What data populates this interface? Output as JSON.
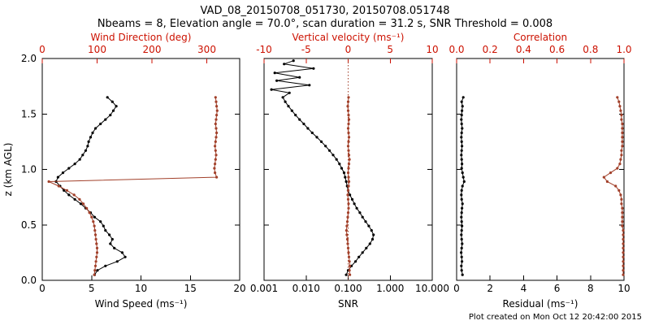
{
  "title": "VAD_08_20150708_051730, 20150708.051748",
  "subtitle": "Nbeams = 8, Elevation angle = 70.0°, scan duration = 31.2 s, SNR Threshold = 0.008",
  "footer": "Plot created on Mon Oct 12 20:42:00 2015",
  "colors": {
    "axis_red": "#cc1100",
    "series_red": "#a2402a",
    "series_black": "#000000"
  },
  "y_axis": {
    "label": "z (km AGL)",
    "range": [
      0,
      2
    ],
    "ticks": [
      0,
      0.5,
      1,
      1.5,
      2
    ],
    "labels": [
      "0.0",
      "0.5",
      "1.0",
      "1.5",
      "2.0"
    ]
  },
  "chart_data": [
    {
      "type": "line",
      "name": "wind-panel",
      "xlabel_bottom": "Wind Speed (ms⁻¹)",
      "xlabel_top": "Wind Direction (deg)",
      "x_bottom": {
        "scale": "linear",
        "range": [
          0,
          20
        ],
        "ticks": [
          0,
          5,
          10,
          15,
          20
        ],
        "labels": [
          "0",
          "5",
          "10",
          "15",
          "20"
        ]
      },
      "x_top": {
        "scale": "linear",
        "range": [
          0,
          360
        ],
        "ticks": [
          0,
          100,
          200,
          300
        ],
        "labels": [
          "0",
          "100",
          "200",
          "300"
        ]
      },
      "series": [
        {
          "name": "wind-speed",
          "axis": "bottom",
          "color": "#000000",
          "z": [
            0.05,
            0.09,
            0.13,
            0.17,
            0.21,
            0.25,
            0.29,
            0.33,
            0.37,
            0.41,
            0.45,
            0.49,
            0.53,
            0.57,
            0.61,
            0.65,
            0.69,
            0.73,
            0.77,
            0.81,
            0.85,
            0.89,
            0.93,
            0.97,
            1.01,
            1.05,
            1.09,
            1.13,
            1.17,
            1.21,
            1.25,
            1.29,
            1.33,
            1.37,
            1.41,
            1.45,
            1.49,
            1.53,
            1.57,
            1.61,
            1.65
          ],
          "values": [
            5.3,
            5.6,
            6.4,
            7.6,
            8.4,
            8.1,
            7.3,
            6.9,
            7.1,
            6.8,
            6.4,
            6.2,
            5.9,
            5.3,
            4.9,
            4.4,
            3.9,
            3.3,
            2.7,
            2.2,
            1.8,
            1.4,
            1.6,
            2.1,
            2.7,
            3.3,
            3.8,
            4.1,
            4.4,
            4.6,
            4.7,
            4.9,
            5.1,
            5.4,
            5.9,
            6.4,
            6.9,
            7.2,
            7.5,
            7.1,
            6.6
          ]
        },
        {
          "name": "wind-direction",
          "axis": "top",
          "color": "#a2402a",
          "z": [
            0.05,
            0.09,
            0.13,
            0.17,
            0.21,
            0.25,
            0.29,
            0.33,
            0.37,
            0.41,
            0.45,
            0.49,
            0.53,
            0.57,
            0.61,
            0.65,
            0.69,
            0.73,
            0.77,
            0.81,
            0.85,
            0.89,
            0.93,
            0.97,
            1.01,
            1.05,
            1.09,
            1.13,
            1.17,
            1.21,
            1.25,
            1.29,
            1.33,
            1.37,
            1.41,
            1.45,
            1.49,
            1.53,
            1.57,
            1.61,
            1.65
          ],
          "values": [
            95,
            96,
            97,
            98,
            99,
            100,
            100,
            99,
            98,
            97,
            96,
            95,
            93,
            90,
            86,
            81,
            75,
            68,
            58,
            45,
            30,
            12,
            318,
            315,
            314,
            315,
            316,
            317,
            316,
            315,
            316,
            317,
            318,
            317,
            316,
            317,
            318,
            319,
            318,
            317,
            316
          ]
        }
      ]
    },
    {
      "type": "line",
      "name": "snr-panel",
      "xlabel_bottom": "SNR",
      "xlabel_top": "Vertical velocity (ms⁻¹)",
      "x_bottom": {
        "scale": "log",
        "range": [
          0.001,
          10
        ],
        "ticks": [
          0.001,
          0.01,
          0.1,
          1,
          10
        ],
        "labels": [
          "0.001",
          "0.010",
          "0.100",
          "1.000",
          "10.000"
        ]
      },
      "x_top": {
        "scale": "linear",
        "range": [
          -10,
          10
        ],
        "ticks": [
          -10,
          -5,
          0,
          5,
          10
        ],
        "labels": [
          "-10",
          "-5",
          "0",
          "5",
          "10"
        ]
      },
      "refline": {
        "axis": "top",
        "value": 0,
        "style": "dotted"
      },
      "series": [
        {
          "name": "snr",
          "axis": "bottom",
          "color": "#000000",
          "z": [
            0.05,
            0.09,
            0.13,
            0.17,
            0.21,
            0.25,
            0.29,
            0.33,
            0.37,
            0.41,
            0.45,
            0.49,
            0.53,
            0.57,
            0.61,
            0.65,
            0.69,
            0.73,
            0.77,
            0.81,
            0.85,
            0.89,
            0.93,
            0.97,
            1.01,
            1.05,
            1.09,
            1.13,
            1.17,
            1.21,
            1.25,
            1.29,
            1.33,
            1.37,
            1.41,
            1.45,
            1.49,
            1.53,
            1.57,
            1.61,
            1.65,
            1.69,
            1.72,
            1.76,
            1.8,
            1.83,
            1.87,
            1.91,
            1.95,
            1.98
          ],
          "values": [
            0.09,
            0.1,
            0.12,
            0.15,
            0.18,
            0.22,
            0.27,
            0.33,
            0.38,
            0.4,
            0.36,
            0.31,
            0.26,
            0.22,
            0.19,
            0.16,
            0.14,
            0.125,
            0.11,
            0.1,
            0.095,
            0.09,
            0.085,
            0.08,
            0.07,
            0.062,
            0.053,
            0.044,
            0.036,
            0.029,
            0.023,
            0.018,
            0.014,
            0.011,
            0.0088,
            0.007,
            0.0056,
            0.0046,
            0.0038,
            0.0032,
            0.0028,
            0.004,
            0.0015,
            0.012,
            0.002,
            0.007,
            0.0018,
            0.015,
            0.003,
            0.005
          ]
        },
        {
          "name": "vertical-velocity",
          "axis": "top",
          "color": "#a2402a",
          "z": [
            0.05,
            0.09,
            0.13,
            0.17,
            0.21,
            0.25,
            0.29,
            0.33,
            0.37,
            0.41,
            0.45,
            0.49,
            0.53,
            0.57,
            0.61,
            0.65,
            0.69,
            0.73,
            0.77,
            0.81,
            0.85,
            0.89,
            0.93,
            0.97,
            1.01,
            1.05,
            1.09,
            1.13,
            1.17,
            1.21,
            1.25,
            1.29,
            1.33,
            1.37,
            1.41,
            1.45,
            1.49,
            1.53,
            1.57,
            1.61,
            1.65
          ],
          "values": [
            0.2,
            0.15,
            0.2,
            0.15,
            0.1,
            0.05,
            0,
            -0.05,
            -0.1,
            -0.15,
            -0.2,
            -0.15,
            -0.1,
            -0.05,
            0,
            0.05,
            0.05,
            0,
            -0.05,
            0,
            0.05,
            0.1,
            0.05,
            0,
            0.05,
            0.1,
            0.15,
            0.1,
            0.05,
            0,
            0.05,
            0.1,
            0.05,
            0,
            0.05,
            0.1,
            0.05,
            0,
            -0.05,
            0,
            0.05
          ]
        }
      ]
    },
    {
      "type": "line",
      "name": "residual-panel",
      "xlabel_bottom": "Residual (ms⁻¹)",
      "xlabel_top": "Correlation",
      "x_bottom": {
        "scale": "linear",
        "range": [
          0,
          10
        ],
        "ticks": [
          0,
          2,
          4,
          6,
          8,
          10
        ],
        "labels": [
          "0",
          "2",
          "4",
          "6",
          "8",
          "10"
        ]
      },
      "x_top": {
        "scale": "linear",
        "range": [
          0,
          1
        ],
        "ticks": [
          0,
          0.2,
          0.4,
          0.6,
          0.8,
          1
        ],
        "labels": [
          "0.0",
          "0.2",
          "0.4",
          "0.6",
          "0.8",
          "1.0"
        ]
      },
      "series": [
        {
          "name": "residual",
          "axis": "bottom",
          "color": "#000000",
          "z": [
            0.05,
            0.09,
            0.13,
            0.17,
            0.21,
            0.25,
            0.29,
            0.33,
            0.37,
            0.41,
            0.45,
            0.49,
            0.53,
            0.57,
            0.61,
            0.65,
            0.69,
            0.73,
            0.77,
            0.81,
            0.85,
            0.89,
            0.93,
            0.97,
            1.01,
            1.05,
            1.09,
            1.13,
            1.17,
            1.21,
            1.25,
            1.29,
            1.33,
            1.37,
            1.41,
            1.45,
            1.49,
            1.53,
            1.57,
            1.61,
            1.65
          ],
          "values": [
            0.35,
            0.3,
            0.28,
            0.32,
            0.3,
            0.27,
            0.3,
            0.33,
            0.3,
            0.28,
            0.3,
            0.32,
            0.3,
            0.28,
            0.3,
            0.32,
            0.35,
            0.3,
            0.28,
            0.3,
            0.35,
            0.45,
            0.4,
            0.35,
            0.3,
            0.32,
            0.3,
            0.28,
            0.3,
            0.32,
            0.3,
            0.28,
            0.3,
            0.33,
            0.3,
            0.28,
            0.3,
            0.32,
            0.35,
            0.3,
            0.4
          ]
        },
        {
          "name": "correlation",
          "axis": "top",
          "color": "#a2402a",
          "z": [
            0.05,
            0.09,
            0.13,
            0.17,
            0.21,
            0.25,
            0.29,
            0.33,
            0.37,
            0.41,
            0.45,
            0.49,
            0.53,
            0.57,
            0.61,
            0.65,
            0.69,
            0.73,
            0.77,
            0.81,
            0.85,
            0.89,
            0.93,
            0.97,
            1.01,
            1.05,
            1.09,
            1.13,
            1.17,
            1.21,
            1.25,
            1.29,
            1.33,
            1.37,
            1.41,
            1.45,
            1.49,
            1.53,
            1.57,
            1.61,
            1.65
          ],
          "values": [
            0.995,
            0.995,
            0.995,
            0.995,
            0.995,
            0.995,
            0.995,
            0.995,
            0.995,
            0.995,
            0.995,
            0.99,
            0.99,
            0.99,
            0.99,
            0.99,
            0.985,
            0.985,
            0.98,
            0.97,
            0.95,
            0.9,
            0.88,
            0.92,
            0.96,
            0.975,
            0.98,
            0.985,
            0.985,
            0.99,
            0.99,
            0.99,
            0.99,
            0.99,
            0.99,
            0.985,
            0.985,
            0.98,
            0.975,
            0.97,
            0.96
          ]
        }
      ]
    }
  ]
}
